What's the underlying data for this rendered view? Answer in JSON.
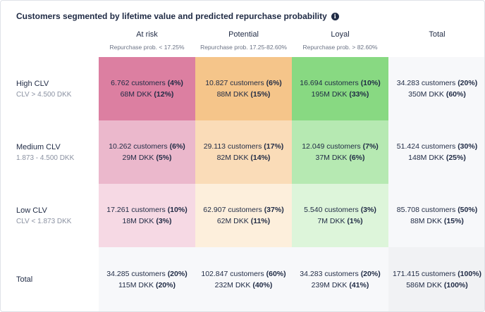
{
  "title": "Customers segmented by lifetime value and predicted repurchase probability",
  "columns": [
    {
      "label": "At risk",
      "sub": "Repurchase prob. < 17.25%"
    },
    {
      "label": "Potential",
      "sub": "Repurchase prob. 17.25-82.60%"
    },
    {
      "label": "Loyal",
      "sub": "Repurchase prob. > 82.60%"
    },
    {
      "label": "Total",
      "sub": ""
    }
  ],
  "rows": [
    {
      "label": "High CLV",
      "sub": "CLV > 4.500 DKK",
      "cells": [
        {
          "customers": "6.762 customers",
          "cust_pct": "(4%)",
          "value": "68M DKK",
          "val_pct": "(12%)",
          "color": "#dc7fa1"
        },
        {
          "customers": "10.827 customers",
          "cust_pct": "(6%)",
          "value": "88M DKK",
          "val_pct": "(15%)",
          "color": "#f5c58a"
        },
        {
          "customers": "16.694 customers",
          "cust_pct": "(10%)",
          "value": "195M DKK",
          "val_pct": "(33%)",
          "color": "#88d982"
        },
        {
          "customers": "34.283 customers",
          "cust_pct": "(20%)",
          "value": "350M DKK",
          "val_pct": "(60%)",
          "color": ""
        }
      ]
    },
    {
      "label": "Medium CLV",
      "sub": "1.873 - 4.500 DKK",
      "cells": [
        {
          "customers": "10.262 customers",
          "cust_pct": "(6%)",
          "value": "29M DKK",
          "val_pct": "(5%)",
          "color": "#ebb8cc"
        },
        {
          "customers": "29.113 customers",
          "cust_pct": "(17%)",
          "value": "82M DKK",
          "val_pct": "(14%)",
          "color": "#fadcb8"
        },
        {
          "customers": "12.049 customers",
          "cust_pct": "(7%)",
          "value": "37M DKK",
          "val_pct": "(6%)",
          "color": "#b6e9b2"
        },
        {
          "customers": "51.424 customers",
          "cust_pct": "(30%)",
          "value": "148M DKK",
          "val_pct": "(25%)",
          "color": ""
        }
      ]
    },
    {
      "label": "Low CLV",
      "sub": "CLV < 1.873 DKK",
      "cells": [
        {
          "customers": "17.261 customers",
          "cust_pct": "(10%)",
          "value": "18M DKK",
          "val_pct": "(3%)",
          "color": "#f6d9e4"
        },
        {
          "customers": "62.907 customers",
          "cust_pct": "(37%)",
          "value": "62M DKK",
          "val_pct": "(11%)",
          "color": "#fdefdc"
        },
        {
          "customers": "5.540 customers",
          "cust_pct": "(3%)",
          "value": "7M DKK",
          "val_pct": "(1%)",
          "color": "#ddf5da"
        },
        {
          "customers": "85.708 customers",
          "cust_pct": "(50%)",
          "value": "88M DKK",
          "val_pct": "(15%)",
          "color": ""
        }
      ]
    },
    {
      "label": "Total",
      "sub": "",
      "cells": [
        {
          "customers": "34.285 customers",
          "cust_pct": "(20%)",
          "value": "115M DKK",
          "val_pct": "(20%)",
          "color": ""
        },
        {
          "customers": "102.847 customers",
          "cust_pct": "(60%)",
          "value": "232M DKK",
          "val_pct": "(40%)",
          "color": ""
        },
        {
          "customers": "34.283 customers",
          "cust_pct": "(20%)",
          "value": "239M DKK",
          "val_pct": "(41%)",
          "color": ""
        },
        {
          "customers": "171.415 customers",
          "cust_pct": "(100%)",
          "value": "586M DKK",
          "val_pct": "(100%)",
          "color": ""
        }
      ]
    }
  ]
}
